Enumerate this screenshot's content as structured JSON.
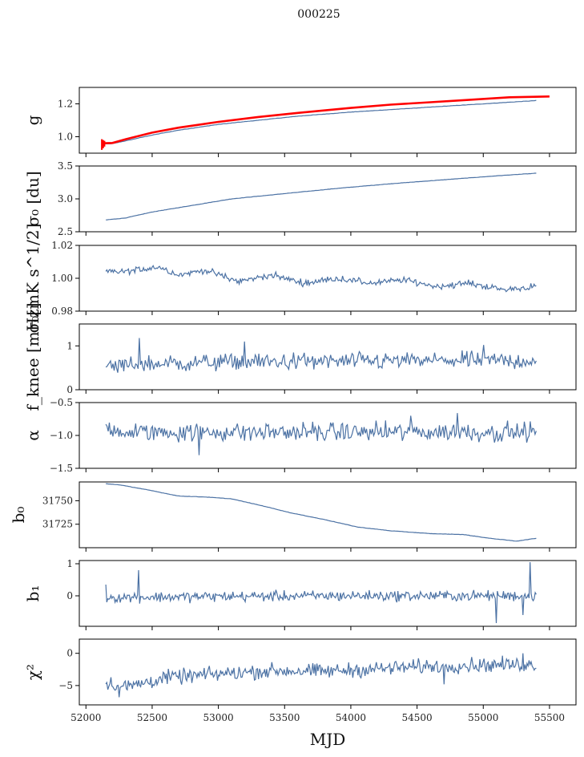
{
  "figure": {
    "title": "000225",
    "xlabel": "MJD",
    "series_color": "#4c72a4",
    "overlay_color": "#ff0000"
  },
  "chart_data": [
    {
      "type": "line",
      "name": "gain",
      "ylabel": "g",
      "xlim": [
        51950,
        55700
      ],
      "ylim": [
        0.9,
        1.3
      ],
      "yticks": [
        1.0,
        1.2
      ],
      "yticklabels": [
        "1.0",
        "1.2"
      ],
      "xticklabels_visible": false,
      "x": [
        52120,
        52200,
        52300,
        52500,
        52700,
        53000,
        53300,
        53600,
        54000,
        54300,
        54600,
        54900,
        55200,
        55400
      ],
      "y": [
        0.955,
        0.958,
        0.975,
        1.01,
        1.04,
        1.075,
        1.1,
        1.125,
        1.15,
        1.165,
        1.18,
        1.195,
        1.21,
        1.22
      ],
      "overlay_x": [
        52120,
        52200,
        52300,
        52500,
        52700,
        53000,
        53300,
        53600,
        54000,
        54300,
        54600,
        54900,
        55200,
        55500
      ],
      "overlay_y": [
        0.96,
        0.962,
        0.985,
        1.025,
        1.055,
        1.09,
        1.12,
        1.145,
        1.175,
        1.195,
        1.21,
        1.225,
        1.24,
        1.245
      ],
      "overlay_spikes": [
        {
          "x": 52120,
          "lo": 0.92,
          "hi": 0.985
        },
        {
          "x": 52130,
          "lo": 0.93,
          "hi": 0.98
        },
        {
          "x": 52140,
          "lo": 0.94,
          "hi": 0.975
        }
      ]
    },
    {
      "type": "line",
      "name": "sigma0-du",
      "ylabel": "σ₀ [du]",
      "xlim": [
        51950,
        55700
      ],
      "ylim": [
        2.5,
        3.5
      ],
      "yticks": [
        2.5,
        3.0,
        3.5
      ],
      "yticklabels": [
        "2.5",
        "3.0",
        "3.5"
      ],
      "xticklabels_visible": false,
      "x": [
        52150,
        52300,
        52500,
        52800,
        53100,
        53500,
        53900,
        54300,
        54700,
        55100,
        55400
      ],
      "y": [
        2.68,
        2.71,
        2.8,
        2.9,
        3.0,
        3.08,
        3.16,
        3.23,
        3.29,
        3.35,
        3.39
      ]
    },
    {
      "type": "line",
      "name": "sigma0-mk",
      "ylabel": "σ₀[mK s^1/2]",
      "xlim": [
        51950,
        55700
      ],
      "ylim": [
        0.98,
        1.02
      ],
      "yticks": [
        0.98,
        1.0,
        1.02
      ],
      "yticklabels": [
        "0.98",
        "1.00",
        "1.02"
      ],
      "xticklabels_visible": false,
      "x": [
        52150,
        52300,
        52550,
        52700,
        52900,
        53150,
        53400,
        53650,
        53900,
        54150,
        54400,
        54650,
        54900,
        55150,
        55400
      ],
      "y": [
        1.004,
        1.004,
        1.007,
        1.002,
        1.005,
        0.998,
        1.002,
        0.997,
        1.0,
        0.997,
        0.999,
        0.995,
        0.997,
        0.993,
        0.995
      ],
      "noise": 0.0012,
      "samples": 400
    },
    {
      "type": "line",
      "name": "fknee",
      "ylabel": "f_knee [mHz]",
      "xlim": [
        51950,
        55700
      ],
      "ylim": [
        0,
        1.5
      ],
      "yticks": [
        0,
        1
      ],
      "yticklabels": [
        "0",
        "1"
      ],
      "xticklabels_visible": false,
      "x": [
        52150,
        52400,
        53000,
        54000,
        55000,
        55400
      ],
      "y": [
        0.52,
        0.58,
        0.63,
        0.65,
        0.67,
        0.66
      ],
      "noise": 0.12,
      "samples": 360,
      "spikes": [
        {
          "x": 52400,
          "y": 1.18
        },
        {
          "x": 53200,
          "y": 1.1
        },
        {
          "x": 55000,
          "y": 1.02
        }
      ]
    },
    {
      "type": "line",
      "name": "alpha",
      "ylabel": "α",
      "xlim": [
        51950,
        55700
      ],
      "ylim": [
        -1.5,
        -0.5
      ],
      "yticks": [
        -1.5,
        -1.0,
        -0.5
      ],
      "yticklabels": [
        "−1.5",
        "−1.0",
        "−0.5"
      ],
      "xticklabels_visible": false,
      "x": [
        52150,
        53000,
        54000,
        55000,
        55400
      ],
      "y": [
        -0.95,
        -0.95,
        -0.95,
        -0.95,
        -0.95
      ],
      "noise": 0.09,
      "samples": 360,
      "spikes": [
        {
          "x": 52850,
          "y": -1.3
        },
        {
          "x": 54800,
          "y": -0.66
        },
        {
          "x": 54450,
          "y": -0.7
        }
      ]
    },
    {
      "type": "line",
      "name": "b0",
      "ylabel": "b₀",
      "xlim": [
        51950,
        55700
      ],
      "ylim": [
        31700,
        31770
      ],
      "yticks": [
        31725,
        31750
      ],
      "yticklabels": [
        "31725",
        "31750"
      ],
      "xticklabels_visible": false,
      "x": [
        52150,
        52250,
        52450,
        52700,
        52900,
        53100,
        53350,
        53550,
        53800,
        54050,
        54300,
        54600,
        54850,
        55050,
        55250,
        55400
      ],
      "y": [
        31768,
        31767,
        31762,
        31755,
        31754,
        31752,
        31744,
        31737,
        31730,
        31722,
        31718,
        31715,
        31714,
        31710,
        31707,
        31710
      ]
    },
    {
      "type": "line",
      "name": "b1",
      "ylabel": "b₁",
      "xlim": [
        51950,
        55700
      ],
      "ylim": [
        -0.95,
        1.1
      ],
      "yticks": [
        0,
        1
      ],
      "yticklabels": [
        "0",
        "1"
      ],
      "xticklabels_visible": false,
      "x": [
        52150,
        53000,
        54000,
        55000,
        55400
      ],
      "y": [
        -0.05,
        -0.02,
        0.0,
        0.0,
        0.0
      ],
      "noise": 0.1,
      "samples": 420,
      "spikes": [
        {
          "x": 52150,
          "y": 0.35
        },
        {
          "x": 52400,
          "y": 0.8
        },
        {
          "x": 55100,
          "y": -0.85
        },
        {
          "x": 55350,
          "y": 1.05
        },
        {
          "x": 55300,
          "y": -0.6
        }
      ]
    },
    {
      "type": "line",
      "name": "chi2",
      "ylabel": "χ²",
      "xlim": [
        51950,
        55700
      ],
      "ylim": [
        -8,
        2.2
      ],
      "yticks": [
        -5,
        0
      ],
      "yticklabels": [
        "−5",
        "0"
      ],
      "xticks": [
        52000,
        52500,
        53000,
        53500,
        54000,
        54500,
        55000,
        55500
      ],
      "xticklabels": [
        "52000",
        "52500",
        "53000",
        "53500",
        "54000",
        "54500",
        "55000",
        "55500"
      ],
      "xticklabels_visible": true,
      "x": [
        52150,
        52300,
        52600,
        53000,
        53400,
        53800,
        54200,
        54600,
        55000,
        55400
      ],
      "y": [
        -4.5,
        -5.2,
        -3.8,
        -3.2,
        -2.7,
        -2.8,
        -2.4,
        -2.0,
        -1.8,
        -1.8
      ],
      "noise": 0.7,
      "samples": 420,
      "spikes": [
        {
          "x": 52250,
          "y": -6.8
        },
        {
          "x": 54700,
          "y": -4.8
        },
        {
          "x": 55300,
          "y": 0.0
        }
      ]
    }
  ]
}
